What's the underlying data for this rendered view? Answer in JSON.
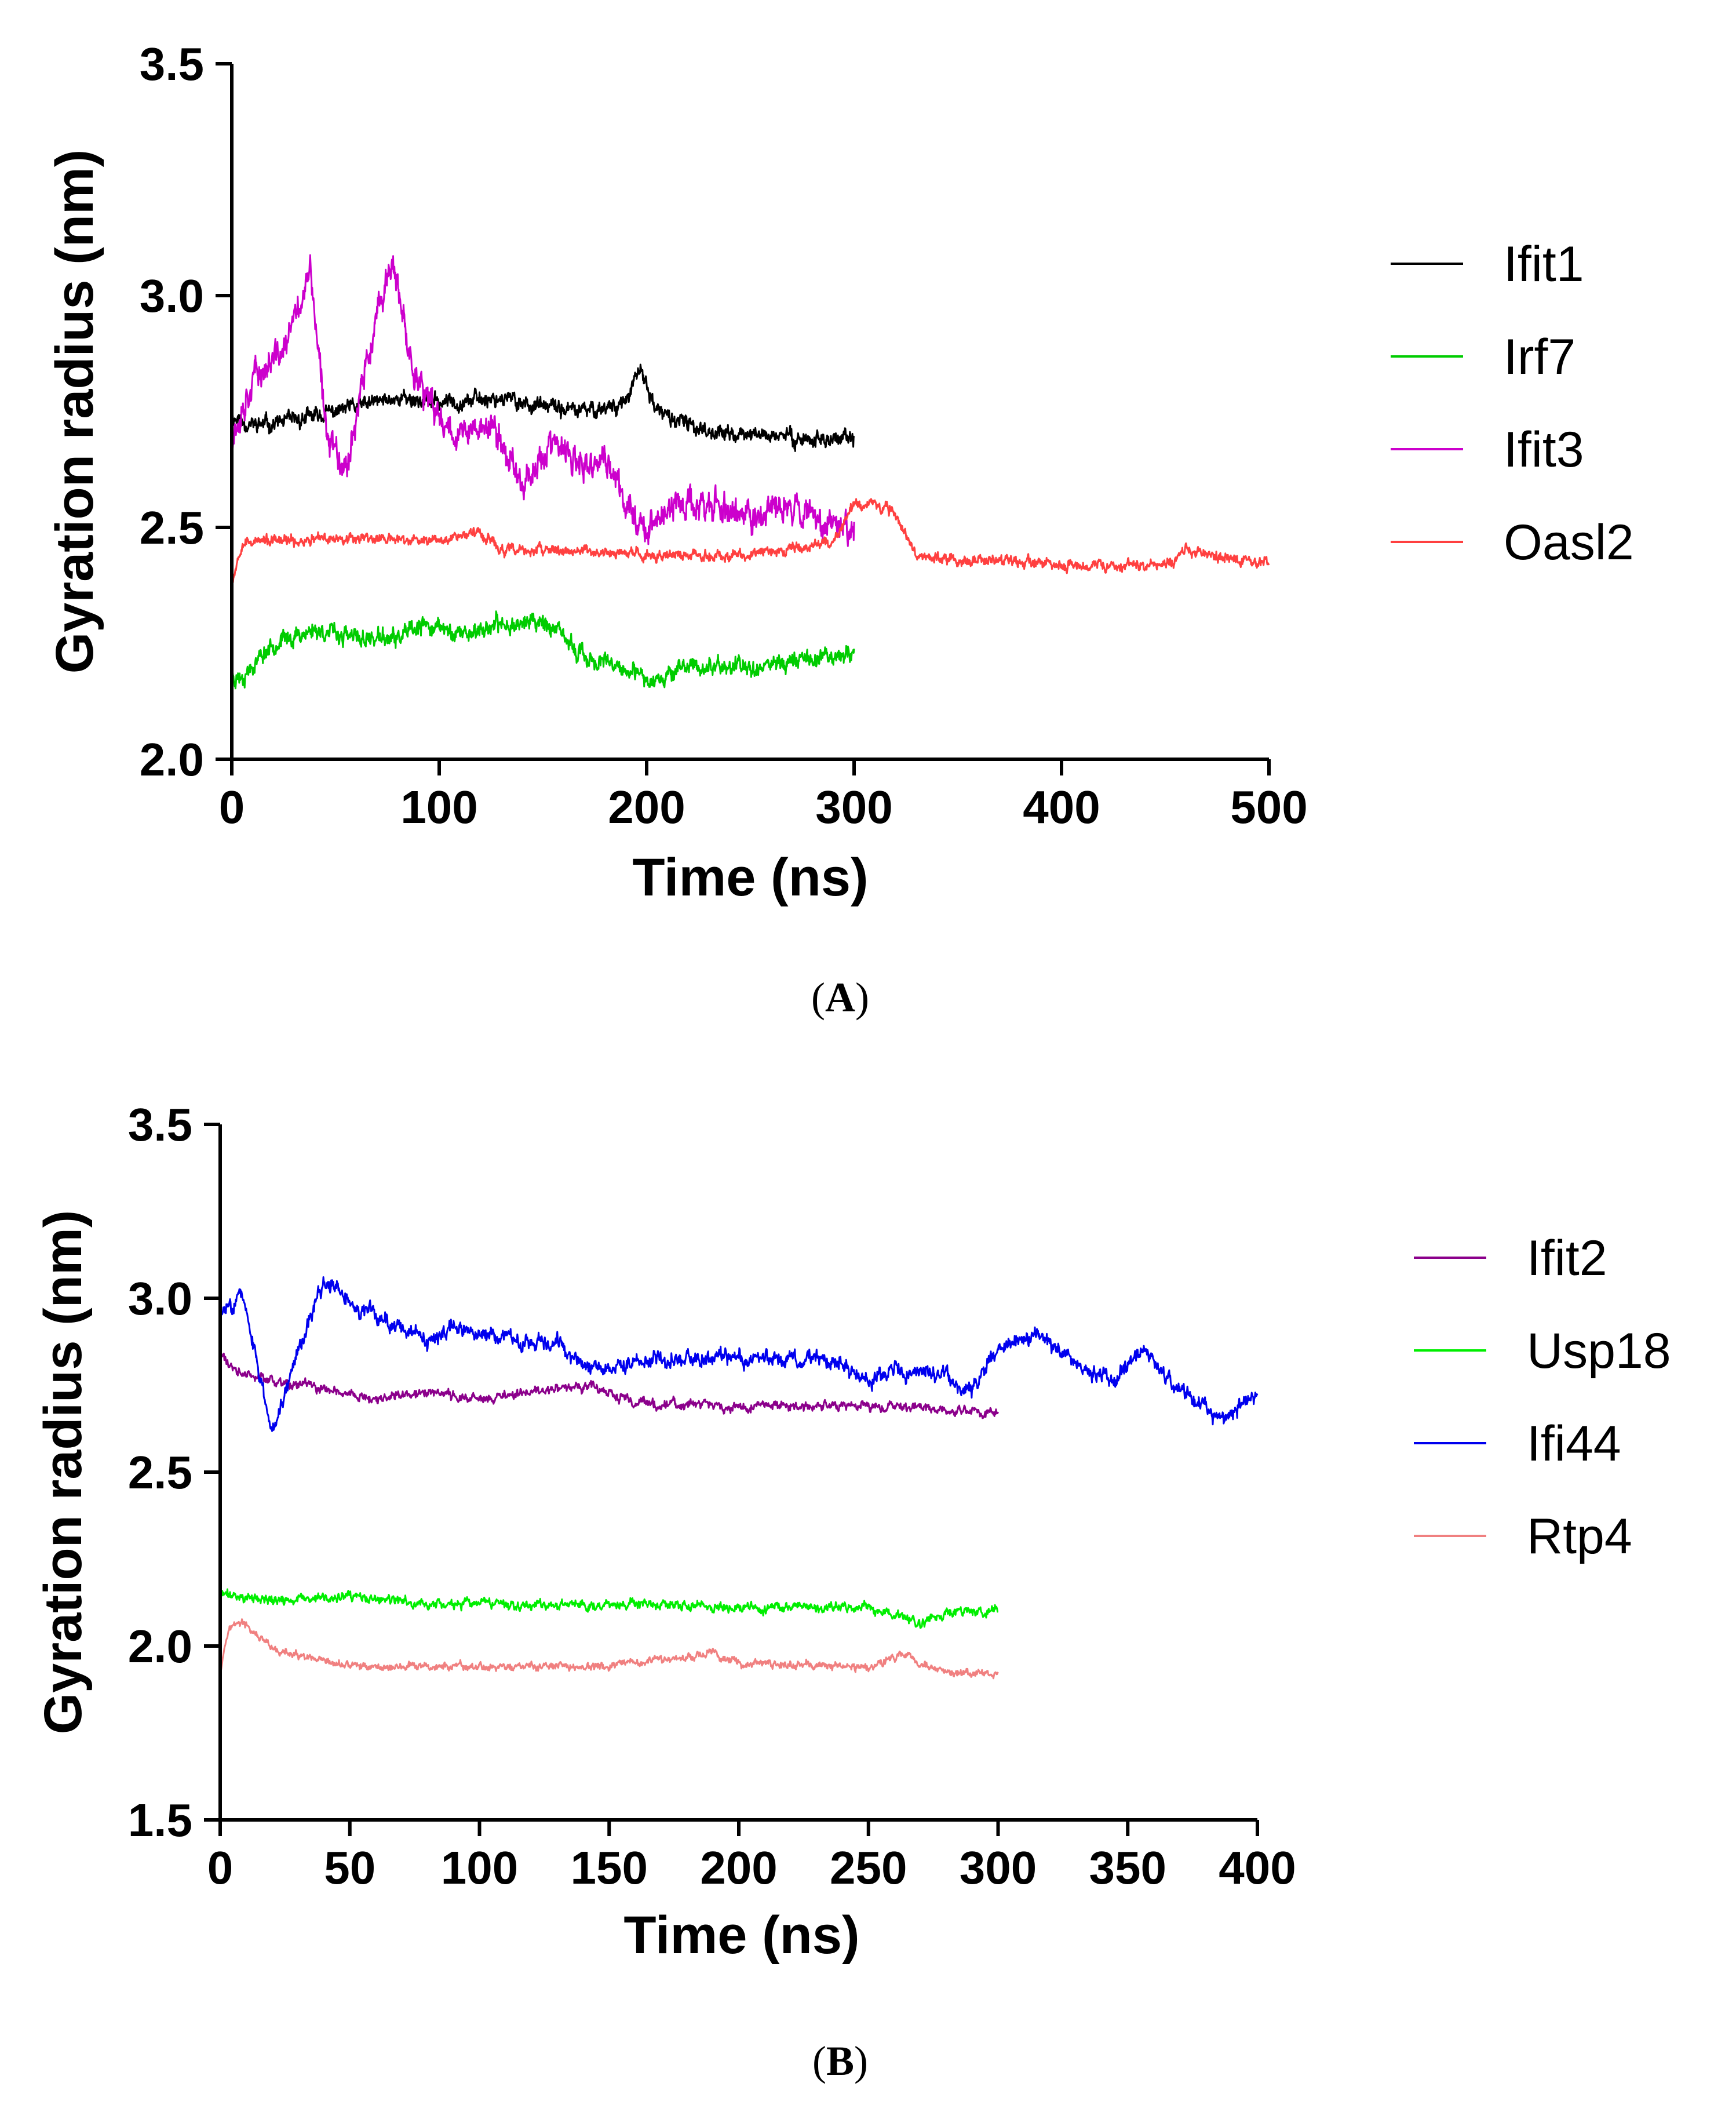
{
  "chart_data": [
    {
      "id": "A",
      "type": "line",
      "caption": "A",
      "xlabel": "Time (ns)",
      "ylabel": "Gyration radius (nm)",
      "xlim": [
        0,
        500
      ],
      "ylim": [
        2.0,
        3.5
      ],
      "xticks": [
        0,
        100,
        200,
        300,
        400,
        500
      ],
      "yticks": [
        2.0,
        2.5,
        3.0,
        3.5
      ],
      "xtick_labels": [
        "0",
        "100",
        "200",
        "300",
        "400",
        "500"
      ],
      "ytick_labels": [
        "2.0",
        "2.5",
        "3.0",
        "3.5"
      ],
      "legend_position": "right",
      "series": [
        {
          "name": "Ifit1",
          "color": "#000000",
          "noise": 0.018,
          "seed": 11,
          "x": [
            0,
            10,
            30,
            60,
            80,
            100,
            130,
            150,
            170,
            190,
            197,
            205,
            220,
            240,
            260,
            280,
            300
          ],
          "y": [
            2.74,
            2.72,
            2.73,
            2.76,
            2.78,
            2.77,
            2.78,
            2.76,
            2.75,
            2.77,
            2.84,
            2.75,
            2.72,
            2.7,
            2.7,
            2.69,
            2.69
          ]
        },
        {
          "name": "Irf7",
          "color": "#00cc00",
          "noise": 0.02,
          "seed": 23,
          "x": [
            0,
            5,
            20,
            40,
            60,
            80,
            95,
            110,
            130,
            150,
            170,
            190,
            200,
            220,
            250,
            280,
            300
          ],
          "y": [
            2.18,
            2.18,
            2.25,
            2.28,
            2.26,
            2.26,
            2.29,
            2.27,
            2.29,
            2.3,
            2.22,
            2.19,
            2.17,
            2.2,
            2.2,
            2.22,
            2.23
          ]
        },
        {
          "name": "Ifit3",
          "color": "#cc00cc",
          "noise": 0.035,
          "seed": 37,
          "x": [
            0,
            10,
            25,
            38,
            45,
            55,
            65,
            77,
            85,
            95,
            110,
            125,
            140,
            155,
            170,
            180,
            190,
            200,
            215,
            230,
            250,
            270,
            285,
            300
          ],
          "y": [
            2.7,
            2.82,
            2.88,
            3.05,
            2.72,
            2.63,
            2.85,
            3.08,
            2.88,
            2.76,
            2.7,
            2.72,
            2.6,
            2.68,
            2.62,
            2.65,
            2.55,
            2.5,
            2.55,
            2.55,
            2.52,
            2.55,
            2.52,
            2.5
          ]
        },
        {
          "name": "Oasl2",
          "color": "#ff4040",
          "noise": 0.012,
          "seed": 53,
          "x": [
            0,
            5,
            30,
            60,
            90,
            120,
            130,
            160,
            200,
            250,
            290,
            300,
            310,
            320,
            330,
            350,
            400,
            450,
            460,
            500
          ],
          "y": [
            2.38,
            2.47,
            2.47,
            2.48,
            2.47,
            2.49,
            2.45,
            2.45,
            2.44,
            2.44,
            2.47,
            2.55,
            2.55,
            2.53,
            2.44,
            2.43,
            2.42,
            2.42,
            2.45,
            2.42
          ]
        }
      ]
    },
    {
      "id": "B",
      "type": "line",
      "caption": "B",
      "xlabel": "Time (ns)",
      "ylabel": "Gyration radius (nm)",
      "xlim": [
        0,
        400
      ],
      "ylim": [
        1.5,
        3.5
      ],
      "xticks": [
        0,
        50,
        100,
        150,
        200,
        250,
        300,
        350,
        400
      ],
      "yticks": [
        1.5,
        2.0,
        2.5,
        3.0,
        3.5
      ],
      "xtick_labels": [
        "0",
        "50",
        "100",
        "150",
        "200",
        "250",
        "300",
        "350",
        "400"
      ],
      "ytick_labels": [
        "1.5",
        "2.0",
        "2.5",
        "3.0",
        "3.5"
      ],
      "legend_position": "right",
      "series": [
        {
          "name": "Ifit2",
          "color": "#8b008b",
          "noise": 0.015,
          "seed": 61,
          "x": [
            0,
            5,
            20,
            40,
            60,
            80,
            100,
            120,
            140,
            160,
            200,
            250,
            300
          ],
          "y": [
            2.85,
            2.79,
            2.76,
            2.74,
            2.71,
            2.73,
            2.71,
            2.73,
            2.75,
            2.7,
            2.69,
            2.69,
            2.67
          ]
        },
        {
          "name": "Usp18",
          "color": "#00ee00",
          "noise": 0.015,
          "seed": 71,
          "x": [
            0,
            20,
            50,
            80,
            100,
            150,
            200,
            250,
            265,
            270,
            280,
            300
          ],
          "y": [
            2.15,
            2.13,
            2.14,
            2.12,
            2.12,
            2.12,
            2.11,
            2.11,
            2.08,
            2.06,
            2.1,
            2.1
          ]
        },
        {
          "name": "Ifi44",
          "color": "#0000ee",
          "noise": 0.025,
          "seed": 83,
          "x": [
            0,
            8,
            15,
            20,
            30,
            40,
            55,
            70,
            80,
            90,
            110,
            130,
            140,
            160,
            200,
            240,
            250,
            260,
            280,
            290,
            300,
            315,
            330,
            345,
            355,
            370,
            385,
            400
          ],
          "y": [
            2.95,
            3.02,
            2.78,
            2.62,
            2.85,
            3.05,
            2.96,
            2.92,
            2.86,
            2.92,
            2.88,
            2.88,
            2.8,
            2.82,
            2.83,
            2.82,
            2.76,
            2.8,
            2.77,
            2.73,
            2.86,
            2.9,
            2.82,
            2.76,
            2.85,
            2.74,
            2.65,
            2.72
          ]
        },
        {
          "name": "Rtp4",
          "color": "#f08080",
          "noise": 0.012,
          "seed": 97,
          "x": [
            0,
            3,
            8,
            20,
            40,
            60,
            100,
            150,
            190,
            200,
            250,
            265,
            270,
            280,
            300
          ],
          "y": [
            1.93,
            2.05,
            2.07,
            1.99,
            1.95,
            1.94,
            1.94,
            1.94,
            1.98,
            1.95,
            1.94,
            1.98,
            1.95,
            1.92,
            1.92
          ]
        }
      ]
    }
  ]
}
